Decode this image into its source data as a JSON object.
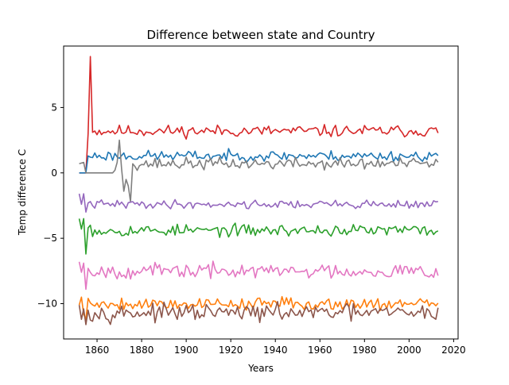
{
  "chart_data": {
    "type": "line",
    "title": "Difference between state and Country",
    "xlabel": "Years",
    "ylabel": "Temp difference C",
    "xlim": [
      1845,
      2022
    ],
    "ylim": [
      -12.7,
      9.7
    ],
    "x_ticks": [
      1860,
      1880,
      1900,
      1920,
      1940,
      1960,
      1980,
      2000,
      2020
    ],
    "y_ticks": [
      5,
      0,
      -5,
      -10
    ],
    "x_tick_labels": [
      "1860",
      "1880",
      "1900",
      "1920",
      "1940",
      "1960",
      "1980",
      "2000",
      "2020"
    ],
    "y_tick_labels": [
      "5",
      "0",
      "−5",
      "−10"
    ],
    "grid": false,
    "legend": "none",
    "x_start": 1852,
    "x_end": 2013,
    "series": [
      {
        "color": "#d62728",
        "base": 3.2,
        "noise": 0.28,
        "seed": 11,
        "overrides": [
          [
            1852,
            0.0
          ],
          [
            1853,
            0.0
          ],
          [
            1854,
            0.0
          ],
          [
            1855,
            0.0
          ],
          [
            1856,
            3.0
          ],
          [
            1857,
            8.9
          ],
          [
            1858,
            3.1
          ],
          [
            1859,
            3.2
          ]
        ]
      },
      {
        "color": "#1f77b4",
        "base": 1.3,
        "noise": 0.25,
        "seed": 23,
        "overrides": [
          [
            1852,
            0.0
          ],
          [
            1853,
            0.0
          ],
          [
            1854,
            0.0
          ],
          [
            1855,
            0.0
          ],
          [
            1856,
            1.3
          ],
          [
            1857,
            1.2
          ]
        ]
      },
      {
        "color": "#7f7f7f",
        "base": 0.7,
        "noise": 0.28,
        "seed": 37,
        "overrides": [
          [
            1852,
            0.7
          ],
          [
            1853,
            0.75
          ],
          [
            1854,
            0.8
          ],
          [
            1855,
            0.0
          ],
          [
            1856,
            0.0
          ],
          [
            1857,
            0.0
          ],
          [
            1858,
            0.0
          ],
          [
            1859,
            0.0
          ],
          [
            1860,
            0.0
          ],
          [
            1861,
            0.0
          ],
          [
            1862,
            0.0
          ],
          [
            1863,
            0.0
          ],
          [
            1864,
            0.0
          ],
          [
            1865,
            0.0
          ],
          [
            1866,
            0.0
          ],
          [
            1867,
            0.0
          ],
          [
            1868,
            0.2
          ],
          [
            1869,
            0.8
          ],
          [
            1870,
            2.5
          ],
          [
            1871,
            0.3
          ],
          [
            1872,
            -1.4
          ],
          [
            1873,
            -0.5
          ],
          [
            1874,
            -1.0
          ],
          [
            1875,
            -2.2
          ],
          [
            1876,
            0.7
          ]
        ]
      },
      {
        "color": "#9467bd",
        "base": -2.4,
        "noise": 0.2,
        "seed": 41,
        "overrides": [
          [
            1852,
            -1.6
          ],
          [
            1853,
            -2.4
          ],
          [
            1854,
            -1.6
          ],
          [
            1855,
            -3.0
          ],
          [
            1856,
            -2.3
          ]
        ]
      },
      {
        "color": "#2ca02c",
        "base": -4.4,
        "noise": 0.28,
        "seed": 53,
        "overrides": [
          [
            1852,
            -3.5
          ],
          [
            1853,
            -4.3
          ],
          [
            1854,
            -3.5
          ],
          [
            1855,
            -6.2
          ],
          [
            1856,
            -4.2
          ],
          [
            1857,
            -4.0
          ]
        ]
      },
      {
        "color": "#e377c2",
        "base": -7.5,
        "noise": 0.35,
        "seed": 67,
        "overrides": [
          [
            1852,
            -6.8
          ],
          [
            1853,
            -7.6
          ],
          [
            1854,
            -6.9
          ],
          [
            1855,
            -8.9
          ],
          [
            1856,
            -7.3
          ]
        ]
      },
      {
        "color": "#ff7f0e",
        "base": -10.0,
        "noise": 0.3,
        "seed": 79,
        "overrides": [
          [
            1852,
            -10.1
          ],
          [
            1853,
            -9.5
          ],
          [
            1854,
            -10.8
          ],
          [
            1855,
            -11.2
          ],
          [
            1856,
            -9.6
          ]
        ]
      },
      {
        "color": "#8c564b",
        "base": -10.7,
        "noise": 0.38,
        "seed": 97,
        "overrides": [
          [
            1852,
            -10.1
          ],
          [
            1853,
            -11.2
          ],
          [
            1854,
            -10.4
          ],
          [
            1855,
            -11.6
          ],
          [
            1856,
            -10.5
          ]
        ]
      }
    ]
  }
}
